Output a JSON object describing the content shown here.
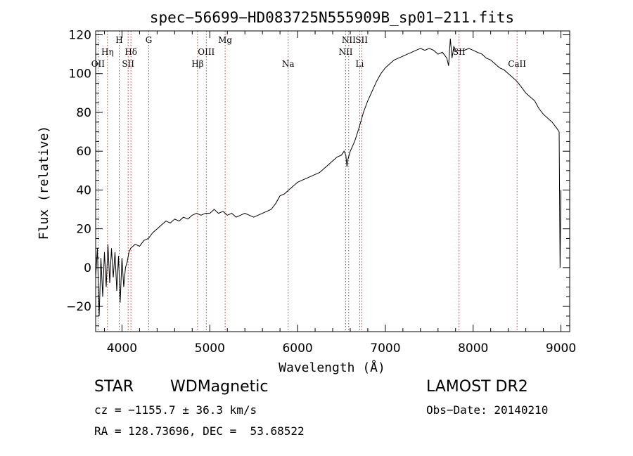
{
  "chart_data": {
    "type": "line",
    "title": "spec−56699−HD083725N555909B_sp01−211.fits",
    "xlabel": "Wavelength (Å)",
    "ylabel": "Flux (relative)",
    "xlim": [
      3700,
      9100
    ],
    "ylim": [
      -33,
      122
    ],
    "x_ticks": [
      4000,
      5000,
      6000,
      7000,
      8000,
      9000
    ],
    "y_ticks": [
      -20,
      0,
      20,
      40,
      60,
      80,
      100,
      120
    ],
    "x_tick_labels": [
      "4000",
      "5000",
      "6000",
      "7000",
      "8000",
      "9000"
    ],
    "y_tick_labels": [
      "−20",
      "0",
      "20",
      "40",
      "60",
      "80",
      "100",
      "120"
    ],
    "grid": false,
    "series": [
      {
        "x": [
          3700,
          3720,
          3740,
          3760,
          3780,
          3800,
          3820,
          3840,
          3860,
          3880,
          3900,
          3920,
          3940,
          3960,
          3980,
          4000,
          4020,
          4040,
          4060,
          4080,
          4100,
          4150,
          4200,
          4250,
          4300,
          4350,
          4400,
          4450,
          4500,
          4550,
          4600,
          4650,
          4700,
          4750,
          4800,
          4850,
          4900,
          4950,
          5000,
          5050,
          5100,
          5150,
          5200,
          5250,
          5300,
          5350,
          5400,
          5450,
          5500,
          5550,
          5600,
          5650,
          5700,
          5750,
          5800,
          5850,
          5900,
          5950,
          6000,
          6050,
          6100,
          6150,
          6200,
          6250,
          6300,
          6350,
          6400,
          6450,
          6500,
          6530,
          6550,
          6563,
          6575,
          6600,
          6650,
          6700,
          6750,
          6800,
          6850,
          6900,
          6950,
          7000,
          7050,
          7100,
          7150,
          7200,
          7250,
          7300,
          7350,
          7400,
          7450,
          7500,
          7550,
          7600,
          7650,
          7700,
          7720,
          7740,
          7760,
          7780,
          7800,
          7850,
          7900,
          7950,
          8000,
          8050,
          8100,
          8150,
          8200,
          8250,
          8300,
          8350,
          8400,
          8450,
          8500,
          8550,
          8600,
          8650,
          8700,
          8750,
          8800,
          8850,
          8900,
          8950,
          8980,
          8990,
          9000
        ],
        "y": [
          -5,
          10,
          -25,
          5,
          -15,
          8,
          -10,
          12,
          -8,
          10,
          -5,
          8,
          -12,
          6,
          -18,
          5,
          -10,
          0,
          3,
          8,
          10,
          12,
          11,
          14,
          15,
          18,
          20,
          22,
          24,
          23,
          25,
          24,
          26,
          25,
          27,
          28,
          27,
          28,
          28,
          30,
          28,
          29,
          27,
          28,
          26,
          27,
          28,
          27,
          26,
          27,
          28,
          29,
          30,
          33,
          37,
          38,
          40,
          42,
          44,
          45,
          46,
          47,
          48,
          49,
          51,
          53,
          55,
          57,
          58,
          60,
          58,
          52,
          56,
          60,
          65,
          72,
          80,
          86,
          91,
          96,
          100,
          103,
          105,
          107,
          108,
          109,
          110,
          111,
          112,
          113,
          112,
          113,
          112,
          110,
          111,
          108,
          104,
          118,
          108,
          114,
          112,
          112,
          112,
          113,
          112,
          111,
          110,
          108,
          107,
          105,
          103,
          102,
          100,
          98,
          96,
          93,
          90,
          88,
          86,
          82,
          79,
          77,
          75,
          72,
          70,
          0,
          40
        ]
      }
    ],
    "lines": [
      {
        "label": "OII",
        "x": 3727,
        "row": 3
      },
      {
        "label": "Hη",
        "x": 3835,
        "row": 2
      },
      {
        "label": "H",
        "x": 3968,
        "row": 1
      },
      {
        "label": "SII",
        "x": 4070,
        "row": 3
      },
      {
        "label": "Hδ",
        "x": 4102,
        "row": 2
      },
      {
        "label": "G",
        "x": 4305,
        "row": 1
      },
      {
        "label": "Hβ",
        "x": 4861,
        "row": 3
      },
      {
        "label": "OIII",
        "x": 4960,
        "row": 2
      },
      {
        "label": "Mg",
        "x": 5175,
        "row": 1
      },
      {
        "label": "Na",
        "x": 5893,
        "row": 3
      },
      {
        "label": "NII",
        "x": 6548,
        "row": 2
      },
      {
        "label": "NII",
        "x": 6583,
        "row": 1
      },
      {
        "label": "Li",
        "x": 6708,
        "row": 3
      },
      {
        "label": "SII",
        "x": 6730,
        "row": 1
      },
      {
        "label": "SII",
        "x": 7840,
        "row": 2
      },
      {
        "label": "CaII",
        "x": 8500,
        "row": 3
      }
    ]
  },
  "info": {
    "class": "STAR",
    "subclass": "WDMagnetic",
    "survey": "LAMOST DR2",
    "cz": "cz = −1155.7 ± 36.3 km/s",
    "obsdate": "Obs−Date: 20140210",
    "radec": "RA = 128.73696, DEC =  53.68522"
  }
}
